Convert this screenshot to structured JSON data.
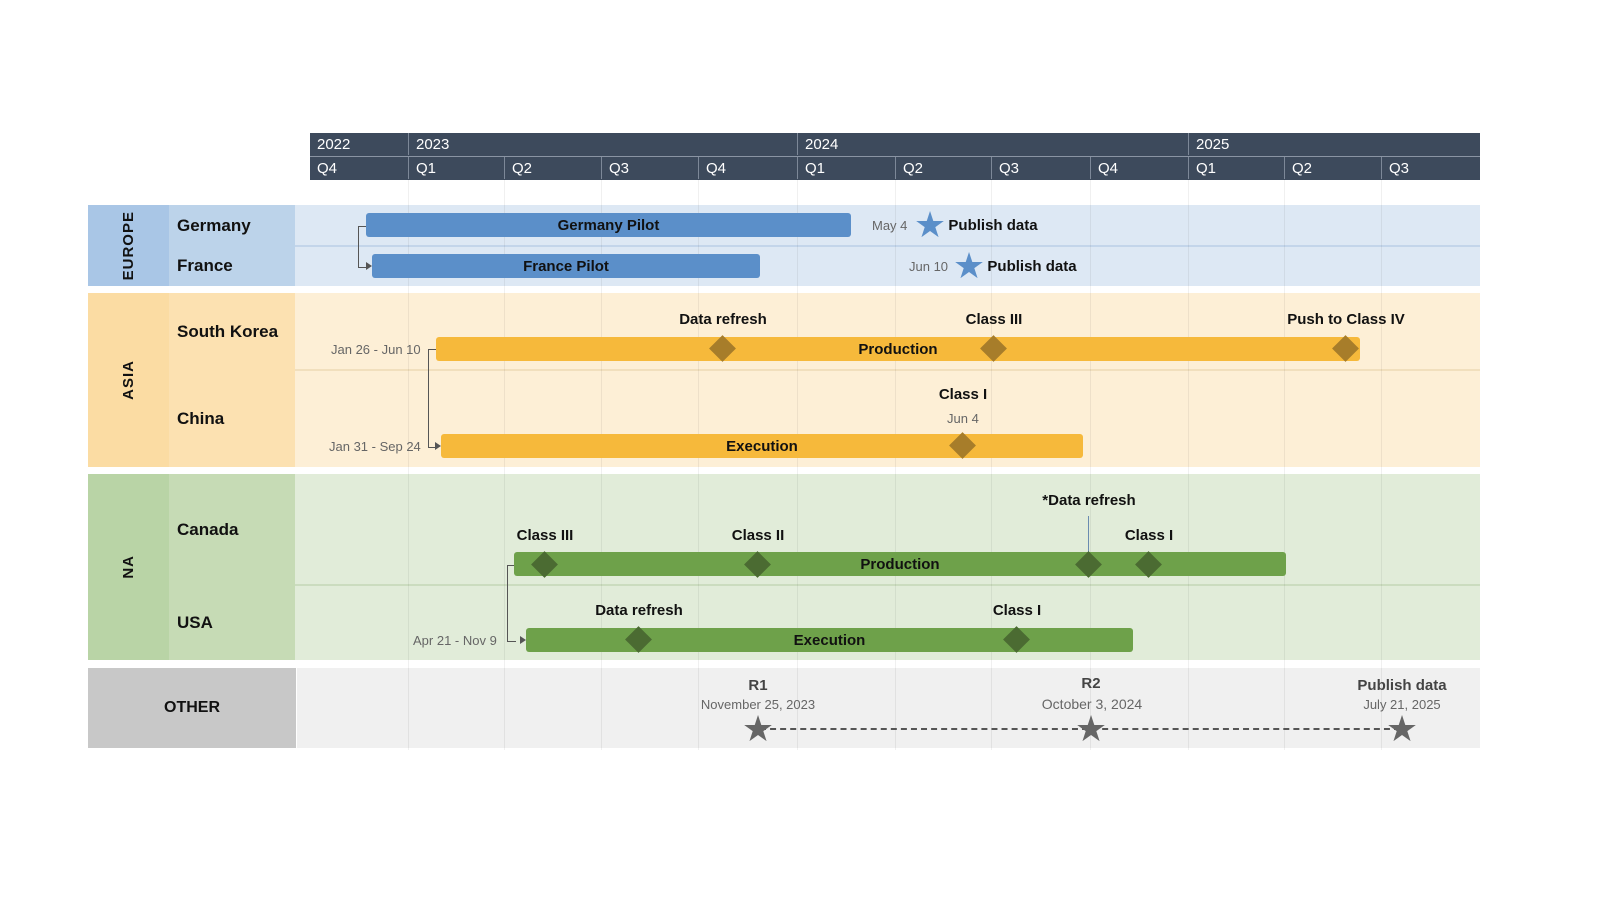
{
  "colors": {
    "header": "#3d4a5c",
    "europe_bar": "#5b8fc9",
    "asia_bar": "#f6b93b",
    "asia_milestone": "#a77d2a",
    "na_bar": "#6ea14a",
    "na_milestone": "#4b6b32",
    "other_milestone": "#666666"
  },
  "timeline": {
    "years": [
      "2022",
      "2023",
      "2024",
      "2025"
    ],
    "quarters": [
      "Q4",
      "Q1",
      "Q2",
      "Q3",
      "Q4",
      "Q1",
      "Q2",
      "Q3",
      "Q4",
      "Q1",
      "Q2",
      "Q3"
    ]
  },
  "groups": {
    "europe": {
      "label": "EUROPE",
      "rows": [
        "Germany",
        "France"
      ],
      "germany": {
        "task": "Germany Pilot",
        "milestone_date": "May 4",
        "milestone": "Publish data"
      },
      "france": {
        "task": "France Pilot",
        "milestone_date": "Jun 10",
        "milestone": "Publish data"
      }
    },
    "asia": {
      "label": "ASIA",
      "rows": [
        "South Korea",
        "China"
      ],
      "south_korea": {
        "dates": "Jan 26 - Jun 10",
        "task": "Production",
        "milestones": [
          "Data refresh",
          "Class III",
          "Push to Class IV"
        ]
      },
      "china": {
        "dates": "Jan 31 - Sep 24",
        "task": "Execution",
        "milestone": "Class I",
        "milestone_date": "Jun 4"
      }
    },
    "na": {
      "label": "NA",
      "rows": [
        "Canada",
        "USA"
      ],
      "canada": {
        "task": "Production",
        "milestones": [
          "Class III",
          "Class II",
          "*Data refresh",
          "Class I"
        ]
      },
      "usa": {
        "dates": "Apr 21 - Nov 9",
        "task": "Execution",
        "milestones": [
          "Data refresh",
          "Class I"
        ]
      }
    },
    "other": {
      "label": "OTHER",
      "milestones": [
        {
          "title": "R1",
          "date": "November 25, 2023"
        },
        {
          "title": "R2",
          "date": "October 3, 2024"
        },
        {
          "title": "Publish data",
          "date": "July 21, 2025"
        }
      ]
    }
  }
}
